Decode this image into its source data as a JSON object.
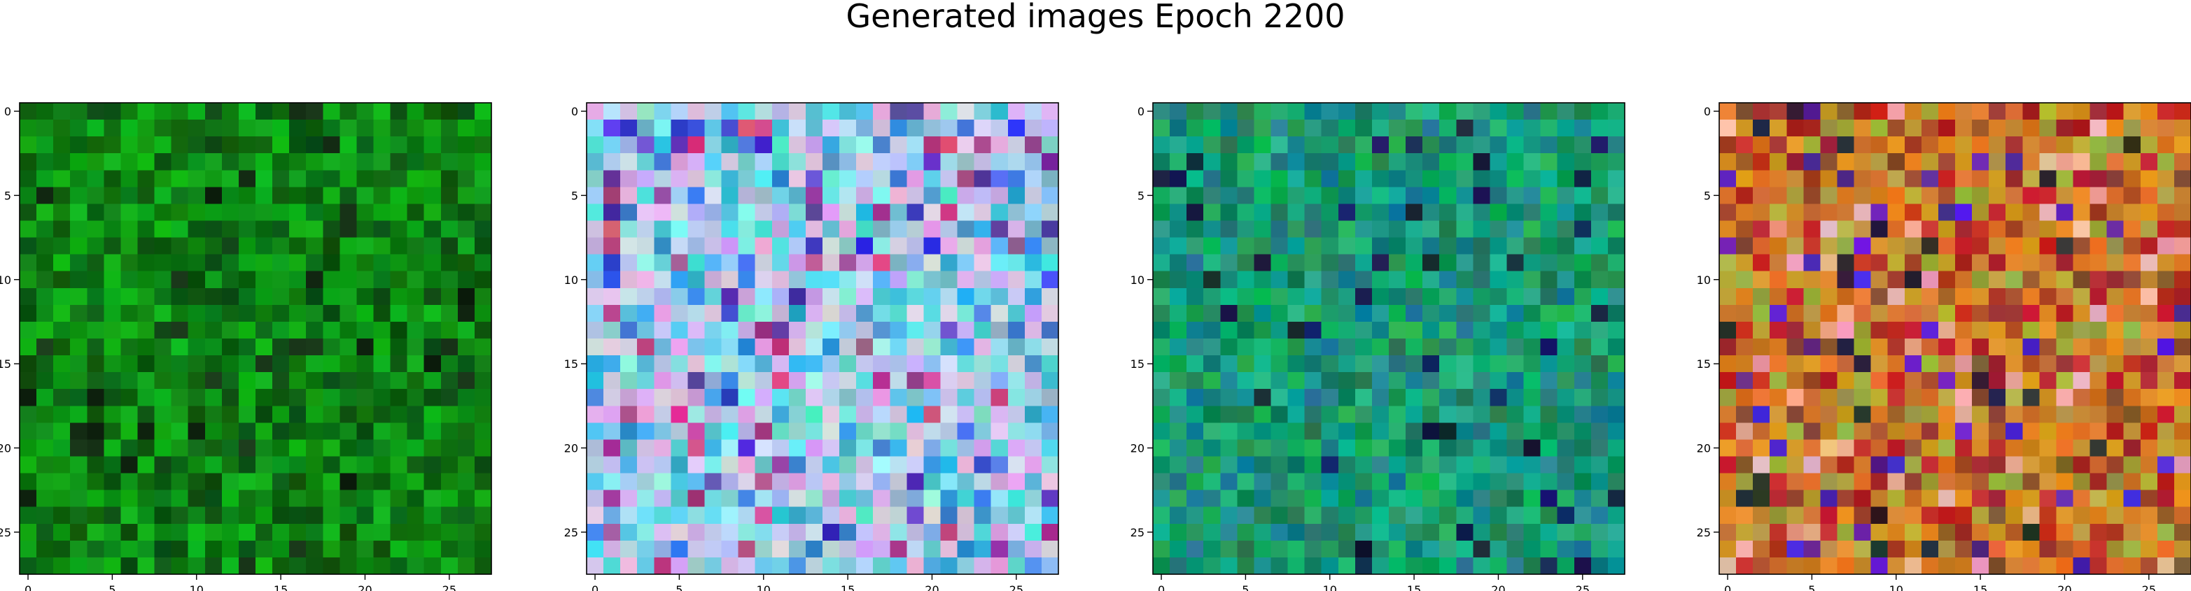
{
  "figure": {
    "title": "Generated images Epoch 2200"
  },
  "chart_data": [
    {
      "type": "heatmap",
      "palette": "green",
      "grid_size": [
        28,
        28
      ],
      "xlim": [
        -0.5,
        27.5
      ],
      "ylim": [
        27.5,
        -0.5
      ],
      "x_ticks": [
        0,
        5,
        10,
        15,
        20,
        25
      ],
      "y_ticks": [
        0,
        5,
        10,
        15,
        20,
        25
      ]
    },
    {
      "type": "heatmap",
      "palette": "pastel-cyan-lavender",
      "grid_size": [
        28,
        28
      ],
      "xlim": [
        -0.5,
        27.5
      ],
      "ylim": [
        27.5,
        -0.5
      ],
      "x_ticks": [
        0,
        5,
        10,
        15,
        20,
        25
      ],
      "y_ticks": [
        0,
        5,
        10,
        15,
        20,
        25
      ]
    },
    {
      "type": "heatmap",
      "palette": "teal-green",
      "grid_size": [
        28,
        28
      ],
      "xlim": [
        -0.5,
        27.5
      ],
      "ylim": [
        27.5,
        -0.5
      ],
      "x_ticks": [
        0,
        5,
        10,
        15,
        20,
        25
      ],
      "y_ticks": [
        0,
        5,
        10,
        15,
        20,
        25
      ]
    },
    {
      "type": "heatmap",
      "palette": "orange-red-olive",
      "grid_size": [
        28,
        28
      ],
      "xlim": [
        -0.5,
        27.5
      ],
      "ylim": [
        27.5,
        -0.5
      ],
      "x_ticks": [
        0,
        5,
        10,
        15,
        20,
        25
      ],
      "y_ticks": [
        0,
        5,
        10,
        15,
        20,
        25
      ]
    }
  ]
}
